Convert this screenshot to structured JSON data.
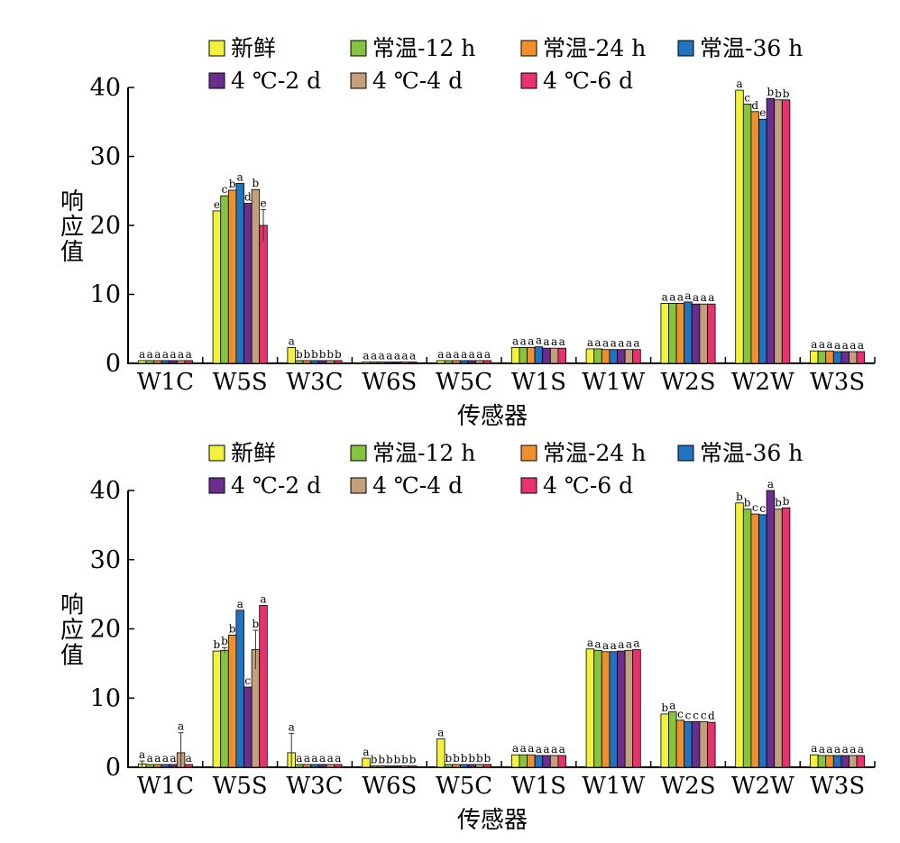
{
  "legend": {
    "entries": [
      {
        "label": "新鲜",
        "color": "#f2f23a"
      },
      {
        "label": "常温-12 h",
        "color": "#86c440"
      },
      {
        "label": "常温-24 h",
        "color": "#f08f2c"
      },
      {
        "label": "常温-36 h",
        "color": "#1f73bf"
      },
      {
        "label": "4 ℃-2 d",
        "color": "#6b2e8f"
      },
      {
        "label": "4 ℃-4 d",
        "color": "#c3a07a"
      },
      {
        "label": "4 ℃-6 d",
        "color": "#e8326e"
      }
    ]
  },
  "chart_data": [
    {
      "type": "bar",
      "xlabel": "传感器",
      "ylabel": "响应值",
      "ylim": [
        0,
        40
      ],
      "yticks": [
        0,
        10,
        20,
        30,
        40
      ],
      "grid": false,
      "legend_position": "top",
      "categories": [
        "W1C",
        "W5S",
        "W3C",
        "W6S",
        "W5C",
        "W1S",
        "W1W",
        "W2S",
        "W2W",
        "W3S"
      ],
      "series": [
        {
          "name": "新鲜",
          "values": [
            0.4,
            22.1,
            2.3,
            0.2,
            0.4,
            2.3,
            2.1,
            8.7,
            39.6,
            1.8
          ],
          "errors": [
            0.05,
            0.15,
            0.1,
            0.02,
            0.03,
            0.05,
            0.05,
            0.1,
            0.2,
            0.05
          ],
          "letters": [
            "a",
            "e",
            "a",
            "a",
            "a",
            "a",
            "a",
            "a",
            "a",
            "a"
          ]
        },
        {
          "name": "常温-12 h",
          "values": [
            0.4,
            24.3,
            0.4,
            0.2,
            0.4,
            2.3,
            2.1,
            8.7,
            37.6,
            1.8
          ],
          "errors": [
            0.05,
            0.15,
            0.05,
            0.02,
            0.03,
            0.05,
            0.05,
            0.1,
            0.2,
            0.05
          ],
          "letters": [
            "a",
            "c",
            "b",
            "a",
            "a",
            "a",
            "a",
            "a",
            "c",
            "a"
          ]
        },
        {
          "name": "常温-24 h",
          "values": [
            0.4,
            25.1,
            0.4,
            0.2,
            0.4,
            2.3,
            2.0,
            8.7,
            36.5,
            1.8
          ],
          "errors": [
            0.05,
            0.15,
            0.05,
            0.02,
            0.03,
            0.05,
            0.05,
            0.1,
            0.2,
            0.05
          ],
          "letters": [
            "a",
            "b",
            "b",
            "a",
            "a",
            "a",
            "a",
            "a",
            "d",
            "a"
          ]
        },
        {
          "name": "常温-36 h",
          "values": [
            0.4,
            26.1,
            0.4,
            0.2,
            0.4,
            2.4,
            2.0,
            8.9,
            35.4,
            1.7
          ],
          "errors": [
            0.05,
            0.15,
            0.05,
            0.02,
            0.03,
            0.05,
            0.05,
            0.1,
            0.2,
            0.05
          ],
          "letters": [
            "a",
            "a",
            "b",
            "a",
            "a",
            "a",
            "a",
            "a",
            "e",
            "a"
          ]
        },
        {
          "name": "4 ℃-2 d",
          "values": [
            0.4,
            23.2,
            0.4,
            0.2,
            0.4,
            2.2,
            2.0,
            8.6,
            38.4,
            1.7
          ],
          "errors": [
            0.05,
            0.15,
            0.05,
            0.02,
            0.03,
            0.05,
            0.05,
            0.1,
            0.2,
            0.05
          ],
          "letters": [
            "a",
            "d",
            "b",
            "a",
            "a",
            "a",
            "a",
            "a",
            "b",
            "a"
          ]
        },
        {
          "name": "4 ℃-4 d",
          "values": [
            0.4,
            25.2,
            0.4,
            0.2,
            0.4,
            2.2,
            2.0,
            8.6,
            38.2,
            1.7
          ],
          "errors": [
            0.05,
            0.15,
            0.05,
            0.02,
            0.03,
            0.05,
            0.05,
            0.1,
            0.2,
            0.05
          ],
          "letters": [
            "a",
            "b",
            "b",
            "a",
            "a",
            "a",
            "a",
            "a",
            "b",
            "a"
          ]
        },
        {
          "name": "4 ℃-6 d",
          "values": [
            0.4,
            20.0,
            0.4,
            0.2,
            0.4,
            2.2,
            2.0,
            8.6,
            38.2,
            1.7
          ],
          "errors": [
            0.05,
            2.3,
            0.05,
            0.02,
            0.03,
            0.05,
            0.05,
            0.1,
            0.2,
            0.05
          ],
          "letters": [
            "a",
            "e",
            "b",
            "a",
            "a",
            "a",
            "a",
            "a",
            "b",
            "a"
          ]
        }
      ]
    },
    {
      "type": "bar",
      "xlabel": "传感器",
      "ylabel": "响应值",
      "ylim": [
        0,
        40
      ],
      "yticks": [
        0,
        10,
        20,
        30,
        40
      ],
      "grid": false,
      "legend_position": "top",
      "categories": [
        "W1C",
        "W5S",
        "W3C",
        "W6S",
        "W5C",
        "W1S",
        "W1W",
        "W2S",
        "W2W",
        "W3S"
      ],
      "series": [
        {
          "name": "新鲜",
          "values": [
            0.5,
            16.8,
            2.1,
            1.3,
            4.1,
            1.8,
            17.1,
            7.7,
            38.2,
            1.8
          ],
          "errors": [
            0.4,
            0.3,
            2.8,
            0.1,
            0.1,
            0.05,
            0.1,
            0.1,
            0.2,
            0.05
          ],
          "letters": [
            "a",
            "b",
            "a",
            "a",
            "a",
            "a",
            "a",
            "b",
            "b",
            "a"
          ]
        },
        {
          "name": "常温-12 h",
          "values": [
            0.4,
            16.9,
            0.4,
            0.2,
            0.4,
            1.8,
            16.9,
            8.0,
            37.3,
            1.7
          ],
          "errors": [
            0.05,
            0.4,
            0.05,
            0.02,
            0.03,
            0.05,
            0.1,
            0.1,
            0.2,
            0.05
          ],
          "letters": [
            "a",
            "b",
            "a",
            "b",
            "b",
            "a",
            "a",
            "a",
            "b",
            "a"
          ]
        },
        {
          "name": "常温-24 h",
          "values": [
            0.4,
            19.1,
            0.4,
            0.2,
            0.4,
            1.8,
            16.7,
            6.8,
            36.6,
            1.7
          ],
          "errors": [
            0.05,
            0.15,
            0.05,
            0.02,
            0.03,
            0.05,
            0.1,
            0.1,
            0.2,
            0.05
          ],
          "letters": [
            "a",
            "b",
            "a",
            "b",
            "b",
            "a",
            "a",
            "c",
            "c",
            "a"
          ]
        },
        {
          "name": "常温-36 h",
          "values": [
            0.4,
            22.7,
            0.4,
            0.2,
            0.4,
            1.7,
            16.7,
            6.6,
            36.5,
            1.7
          ],
          "errors": [
            0.05,
            0.15,
            0.05,
            0.02,
            0.03,
            0.05,
            0.1,
            0.1,
            0.2,
            0.05
          ],
          "letters": [
            "a",
            "a",
            "a",
            "b",
            "b",
            "a",
            "a",
            "c",
            "c",
            "a"
          ]
        },
        {
          "name": "4 ℃-2 d",
          "values": [
            0.4,
            11.6,
            0.4,
            0.2,
            0.4,
            1.7,
            16.8,
            6.6,
            40.0,
            1.7
          ],
          "errors": [
            0.05,
            0.15,
            0.05,
            0.02,
            0.03,
            0.05,
            0.1,
            0.1,
            0.2,
            0.05
          ],
          "letters": [
            "a",
            "c",
            "a",
            "b",
            "b",
            "a",
            "a",
            "c",
            "a",
            "a"
          ]
        },
        {
          "name": "4 ℃-4 d",
          "values": [
            2.1,
            17.0,
            0.4,
            0.2,
            0.4,
            1.7,
            16.9,
            6.6,
            37.3,
            1.7
          ],
          "errors": [
            2.9,
            2.8,
            0.05,
            0.02,
            0.03,
            0.05,
            0.1,
            0.1,
            0.2,
            0.05
          ],
          "letters": [
            "a",
            "b",
            "a",
            "b",
            "b",
            "a",
            "a",
            "c",
            "b",
            "a"
          ]
        },
        {
          "name": "4 ℃-6 d",
          "values": [
            0.4,
            23.4,
            0.4,
            0.2,
            0.4,
            1.7,
            17.0,
            6.5,
            37.5,
            1.7
          ],
          "errors": [
            0.05,
            0.15,
            0.05,
            0.02,
            0.03,
            0.05,
            0.1,
            0.1,
            0.2,
            0.05
          ],
          "letters": [
            "a",
            "a",
            "a",
            "b",
            "b",
            "a",
            "a",
            "d",
            "b",
            "a"
          ]
        }
      ]
    }
  ]
}
